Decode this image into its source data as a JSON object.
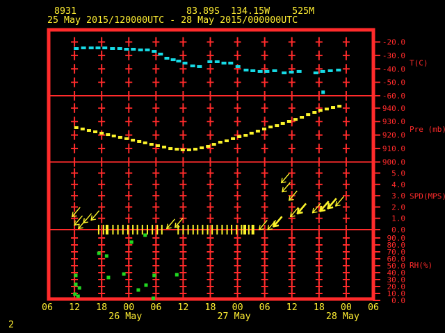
{
  "header": {
    "station_id": "8931",
    "coords": "83.89S  134.15W    525M",
    "period": "25 May 2015/120000UTC - 28 May 2015/000000UTC"
  },
  "footer": {
    "page_number": "2"
  },
  "colors": {
    "background": "#000000",
    "grid_red": "#ff2b2b",
    "text_yellow": "#ffee33",
    "trace_cyan": "#17dbe6",
    "trace_yellow": "#fbf32b",
    "rh_green": "#21d821"
  },
  "chart_data": {
    "type": "line",
    "title": "8931  83.89S 134.15W 525M  25 May 2015/120000UTC - 28 May 2015/000000UTC",
    "x_axis": {
      "unit": "UTC hour (t = hours after 25 May 06UTC)",
      "range_hours": [
        0,
        72
      ],
      "tick_interval_hours": 6,
      "tick_labels": [
        "06",
        "12",
        "18",
        "00",
        "06",
        "12",
        "18",
        "00",
        "06",
        "12",
        "18",
        "00",
        "06"
      ],
      "date_labels": [
        {
          "label": "26 May",
          "t": 18
        },
        {
          "label": "27 May",
          "t": 42
        },
        {
          "label": "28 May",
          "t": 66
        }
      ]
    },
    "panels": [
      {
        "id": "temp",
        "axis_label": "T(C)",
        "color": "cyan",
        "ticks": [
          -20,
          -30,
          -40,
          -50,
          -60
        ],
        "ylim": [
          -60,
          -10
        ],
        "style": "dashed",
        "series": [
          [
            6.4,
            -24.9
          ],
          [
            8.0,
            -24.4
          ],
          [
            9.7,
            -24.4
          ],
          [
            11.2,
            -24.4
          ],
          [
            12.7,
            -24.4
          ],
          [
            14.4,
            -24.9
          ],
          [
            16.0,
            -24.9
          ],
          [
            17.5,
            -25.4
          ],
          [
            19.0,
            -25.4
          ],
          [
            20.6,
            -25.9
          ],
          [
            22.1,
            -25.9
          ],
          [
            23.6,
            -27.0
          ],
          [
            25.0,
            -29.0
          ],
          [
            26.4,
            -32.1
          ],
          [
            27.8,
            -33.2
          ],
          [
            29.0,
            -34.2
          ],
          [
            30.4,
            -35.7
          ],
          [
            32.1,
            -37.8
          ],
          [
            33.6,
            -38.3
          ],
          [
            35.9,
            -34.7
          ],
          [
            37.5,
            -34.7
          ],
          [
            39.0,
            -35.7
          ],
          [
            40.5,
            -35.7
          ],
          [
            42.1,
            -38.3
          ],
          [
            43.9,
            -40.9
          ],
          [
            45.4,
            -41.4
          ],
          [
            47.0,
            -41.9
          ],
          [
            48.5,
            -41.9
          ],
          [
            50.2,
            -41.4
          ],
          [
            52.3,
            -43.0
          ],
          [
            53.9,
            -42.4
          ],
          [
            55.6,
            -41.9
          ],
          [
            59.3,
            -43.0
          ],
          [
            60.8,
            -41.9
          ],
          [
            62.5,
            -41.4
          ],
          [
            64.3,
            -40.9
          ]
        ],
        "outliers": [
          [
            60.9,
            -57.4
          ]
        ]
      },
      {
        "id": "pres",
        "axis_label": "Pre (mb)",
        "color": "yellow",
        "ticks": [
          940,
          930,
          920,
          910,
          900
        ],
        "ylim": [
          900,
          950
        ],
        "style": "dashed",
        "series": [
          [
            6.4,
            925.5
          ],
          [
            7.8,
            924.5
          ],
          [
            9.2,
            923.4
          ],
          [
            10.6,
            922.4
          ],
          [
            12.0,
            921.4
          ],
          [
            13.4,
            920.3
          ],
          [
            14.7,
            919.3
          ],
          [
            16.1,
            918.3
          ],
          [
            17.5,
            917.3
          ],
          [
            18.9,
            916.2
          ],
          [
            20.3,
            915.2
          ],
          [
            21.6,
            914.2
          ],
          [
            23.0,
            913.1
          ],
          [
            24.4,
            912.1
          ],
          [
            25.8,
            911.1
          ],
          [
            27.2,
            910.0
          ],
          [
            28.6,
            909.5
          ],
          [
            29.9,
            909.0
          ],
          [
            31.3,
            909.0
          ],
          [
            32.7,
            909.5
          ],
          [
            34.1,
            910.5
          ],
          [
            35.5,
            911.6
          ],
          [
            36.8,
            913.1
          ],
          [
            38.2,
            914.7
          ],
          [
            39.6,
            915.7
          ],
          [
            41.0,
            917.3
          ],
          [
            42.4,
            918.8
          ],
          [
            43.8,
            919.8
          ],
          [
            45.1,
            921.4
          ],
          [
            46.5,
            922.9
          ],
          [
            47.9,
            924.5
          ],
          [
            49.3,
            926.0
          ],
          [
            50.7,
            927.0
          ],
          [
            52.0,
            928.6
          ],
          [
            53.4,
            930.1
          ],
          [
            54.8,
            931.6
          ],
          [
            56.2,
            933.2
          ],
          [
            57.6,
            935.2
          ],
          [
            59.0,
            936.8
          ],
          [
            60.3,
            938.3
          ],
          [
            61.7,
            939.3
          ],
          [
            63.1,
            940.4
          ],
          [
            64.5,
            941.4
          ]
        ]
      },
      {
        "id": "spd",
        "axis_label": "SPD(MPS)",
        "color": "yellow",
        "ticks": [
          5,
          4,
          3,
          2,
          1,
          0
        ],
        "ylim": [
          0,
          6
        ],
        "style": "wind-arrows",
        "arrows": [
          {
            "t": 5.5,
            "s": 1.15
          },
          {
            "t": 6.0,
            "s": 0.4
          },
          {
            "t": 6.9,
            "s": 0.1
          },
          {
            "t": 8.0,
            "s": 0.6
          },
          {
            "t": 9.7,
            "s": 0.85
          },
          {
            "t": 26.4,
            "s": 0.1
          },
          {
            "t": 28.2,
            "s": 0.2
          },
          {
            "t": 46.8,
            "s": 0.0
          },
          {
            "t": 48.7,
            "s": 0.0
          },
          {
            "t": 50.0,
            "s": 0.3,
            "b": 1
          },
          {
            "t": 51.7,
            "s": 4.15
          },
          {
            "t": 51.9,
            "s": 3.35
          },
          {
            "t": 53.4,
            "s": 2.6
          },
          {
            "t": 53.7,
            "s": 1.15
          },
          {
            "t": 55.3,
            "s": 1.45,
            "b": 1
          },
          {
            "t": 58.6,
            "s": 1.5
          },
          {
            "t": 60.3,
            "s": 1.65,
            "b": 1
          },
          {
            "t": 62.0,
            "s": 1.9,
            "b": 1
          },
          {
            "t": 63.7,
            "s": 2.1
          }
        ],
        "calm_staffs": [
          {
            "t": 11.35
          },
          {
            "t": 12.4
          },
          {
            "t": 13.2,
            "w": 4
          },
          {
            "t": 14.5
          },
          {
            "t": 15.6
          },
          {
            "t": 16.7
          },
          {
            "t": 17.8
          },
          {
            "t": 18.9
          },
          {
            "t": 19.9
          },
          {
            "t": 21.0
          },
          {
            "t": 22.1
          },
          {
            "t": 23.2
          },
          {
            "t": 24.3
          },
          {
            "t": 25.3
          },
          {
            "t": 28.9
          },
          {
            "t": 30.0
          },
          {
            "t": 31.1
          },
          {
            "t": 32.2
          },
          {
            "t": 33.2
          },
          {
            "t": 34.3
          },
          {
            "t": 35.4
          },
          {
            "t": 36.4
          },
          {
            "t": 37.5
          },
          {
            "t": 38.6
          },
          {
            "t": 39.7
          },
          {
            "t": 40.7
          },
          {
            "t": 41.8
          },
          {
            "t": 42.9
          },
          {
            "t": 43.6,
            "w": 4
          },
          {
            "t": 44.5
          },
          {
            "t": 45.4,
            "w": 4
          }
        ]
      },
      {
        "id": "rh",
        "axis_label": "RH(%)",
        "color": "green",
        "ticks": [
          90,
          80,
          70,
          60,
          50,
          40,
          30,
          20,
          10,
          0
        ],
        "ylim": [
          0,
          100
        ],
        "style": "scatter",
        "points": [
          [
            21.6,
            94
          ],
          [
            18.6,
            84
          ],
          [
            11.4,
            68
          ],
          [
            13.1,
            64
          ],
          [
            6.3,
            36
          ],
          [
            13.5,
            33
          ],
          [
            16.9,
            38
          ],
          [
            23.6,
            36
          ],
          [
            28.6,
            37
          ],
          [
            6.3,
            23
          ],
          [
            7.1,
            18
          ],
          [
            6.1,
            9
          ],
          [
            6.8,
            6
          ],
          [
            20.1,
            15
          ],
          [
            21.8,
            22
          ],
          [
            23.4,
            3
          ]
        ]
      }
    ]
  }
}
